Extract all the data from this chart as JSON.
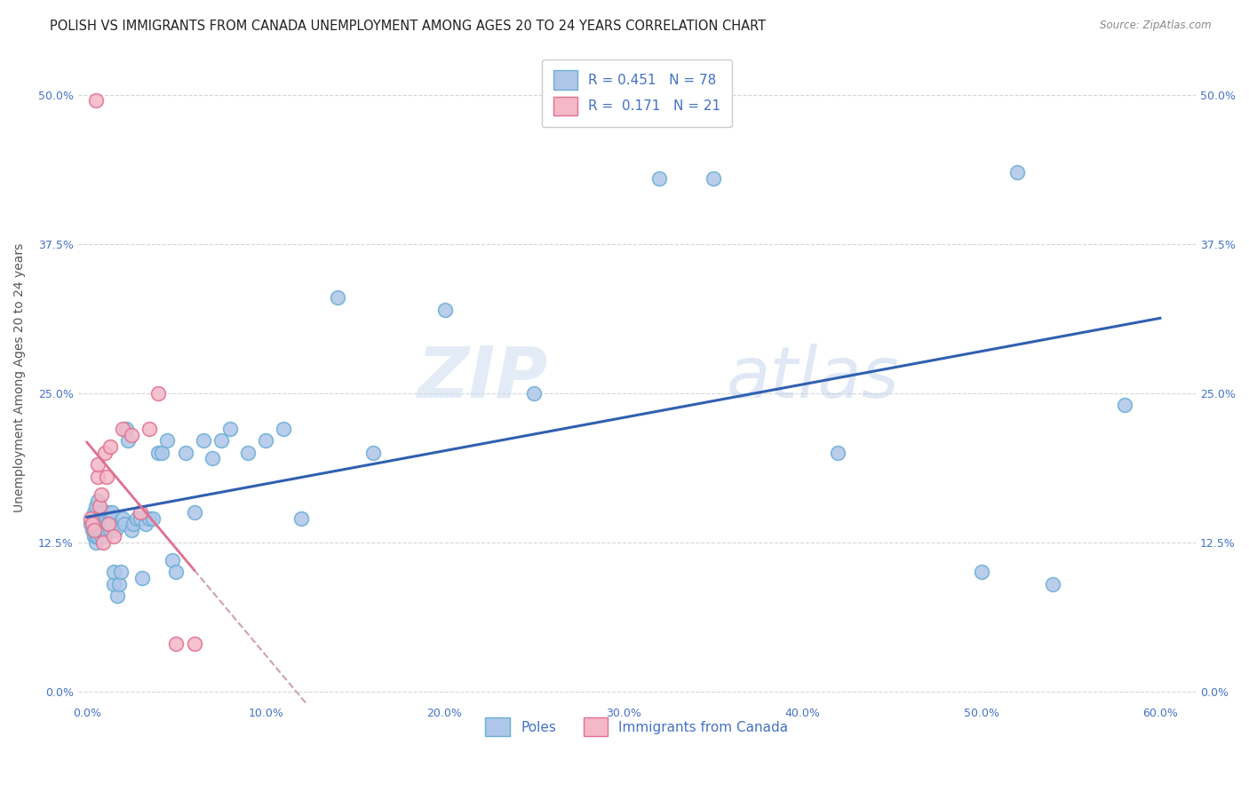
{
  "title": "POLISH VS IMMIGRANTS FROM CANADA UNEMPLOYMENT AMONG AGES 20 TO 24 YEARS CORRELATION CHART",
  "source": "Source: ZipAtlas.com",
  "ylabel": "Unemployment Among Ages 20 to 24 years",
  "xlim": [
    -0.005,
    0.62
  ],
  "ylim": [
    -0.01,
    0.535
  ],
  "xticks": [
    0.0,
    0.1,
    0.2,
    0.3,
    0.4,
    0.5,
    0.6
  ],
  "xticklabels": [
    "0.0%",
    "10.0%",
    "20.0%",
    "30.0%",
    "40.0%",
    "50.0%",
    "60.0%"
  ],
  "ytick_positions": [
    0.0,
    0.125,
    0.25,
    0.375,
    0.5
  ],
  "ytick_labels": [
    "0.0%",
    "12.5%",
    "25.0%",
    "37.5%",
    "50.0%"
  ],
  "watermark_zip": "ZIP",
  "watermark_atlas": "atlas",
  "blue_scatter_face": "#aec6e8",
  "blue_scatter_edge": "#6aaed6",
  "pink_scatter_face": "#f4b8c8",
  "pink_scatter_edge": "#e07090",
  "blue_line_color": "#3060b0",
  "pink_line_solid_color": "#e07090",
  "pink_line_dash_color": "#d0a0b0",
  "grid_color": "#cccccc",
  "tick_color": "#4472c4",
  "background_color": "#ffffff",
  "poles_x": [
    0.002,
    0.003,
    0.003,
    0.004,
    0.004,
    0.005,
    0.005,
    0.005,
    0.005,
    0.006,
    0.006,
    0.006,
    0.006,
    0.007,
    0.007,
    0.007,
    0.008,
    0.008,
    0.008,
    0.008,
    0.009,
    0.009,
    0.009,
    0.01,
    0.01,
    0.01,
    0.011,
    0.011,
    0.012,
    0.012,
    0.013,
    0.013,
    0.014,
    0.014,
    0.015,
    0.015,
    0.016,
    0.017,
    0.018,
    0.019,
    0.02,
    0.021,
    0.022,
    0.023,
    0.025,
    0.026,
    0.028,
    0.03,
    0.031,
    0.033,
    0.035,
    0.037,
    0.04,
    0.042,
    0.045,
    0.048,
    0.05,
    0.055,
    0.06,
    0.065,
    0.07,
    0.075,
    0.08,
    0.09,
    0.1,
    0.11,
    0.12,
    0.14,
    0.16,
    0.2,
    0.25,
    0.32,
    0.35,
    0.42,
    0.5,
    0.52,
    0.54,
    0.58
  ],
  "poles_y": [
    0.14,
    0.135,
    0.145,
    0.13,
    0.15,
    0.125,
    0.13,
    0.14,
    0.155,
    0.135,
    0.13,
    0.145,
    0.16,
    0.14,
    0.135,
    0.145,
    0.13,
    0.135,
    0.14,
    0.15,
    0.135,
    0.14,
    0.145,
    0.13,
    0.14,
    0.15,
    0.135,
    0.145,
    0.14,
    0.15,
    0.135,
    0.145,
    0.14,
    0.15,
    0.09,
    0.1,
    0.135,
    0.08,
    0.09,
    0.1,
    0.145,
    0.14,
    0.22,
    0.21,
    0.135,
    0.14,
    0.145,
    0.145,
    0.095,
    0.14,
    0.145,
    0.145,
    0.2,
    0.2,
    0.21,
    0.11,
    0.1,
    0.2,
    0.15,
    0.21,
    0.195,
    0.21,
    0.22,
    0.2,
    0.21,
    0.22,
    0.145,
    0.33,
    0.2,
    0.32,
    0.25,
    0.43,
    0.43,
    0.2,
    0.1,
    0.435,
    0.09,
    0.24
  ],
  "canada_x": [
    0.002,
    0.003,
    0.004,
    0.005,
    0.006,
    0.006,
    0.007,
    0.008,
    0.009,
    0.01,
    0.011,
    0.012,
    0.013,
    0.015,
    0.02,
    0.025,
    0.03,
    0.035,
    0.04,
    0.05,
    0.06
  ],
  "canada_y": [
    0.145,
    0.14,
    0.135,
    0.495,
    0.18,
    0.19,
    0.155,
    0.165,
    0.125,
    0.2,
    0.18,
    0.14,
    0.205,
    0.13,
    0.22,
    0.215,
    0.15,
    0.22,
    0.25,
    0.04,
    0.04
  ],
  "title_fontsize": 10.5,
  "axis_fontsize": 10,
  "tick_fontsize": 9,
  "legend_fontsize": 11
}
